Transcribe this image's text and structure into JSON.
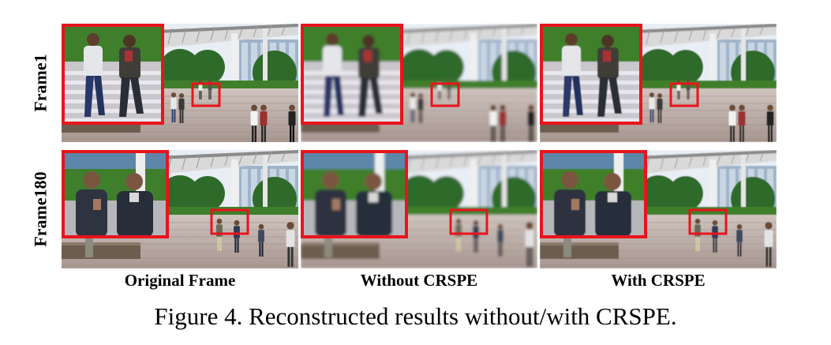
{
  "rows": [
    {
      "label": "Frame1"
    },
    {
      "label": "Frame180"
    }
  ],
  "columns": [
    {
      "label": "Original Frame",
      "blur": 0
    },
    {
      "label": "Without CRSPE",
      "blur": 1.6
    },
    {
      "label": "With CRSPE",
      "blur": 0.6
    }
  ],
  "caption": "Figure 4. Reconstructed results without/with CRSPE.",
  "colors": {
    "highlight_box": "#e8141c",
    "grass": "#3f7f2c",
    "pavement": "#b8aaa4",
    "sky": "#e8eef4"
  }
}
